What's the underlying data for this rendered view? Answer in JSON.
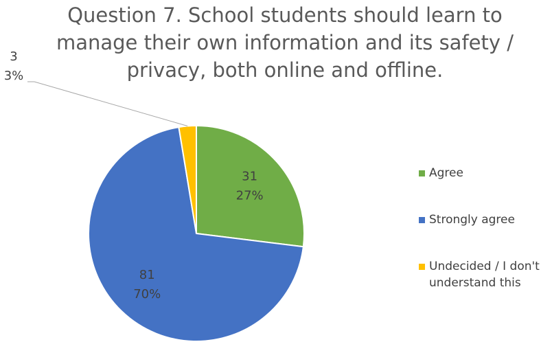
{
  "chart_data": {
    "type": "pie",
    "title": [
      "Question 7. School students should learn to",
      "manage their own information and its safety /",
      "privacy, both online and offline."
    ],
    "categories": [
      "Agree",
      "Strongly agree",
      "Undecided / I don't understand this"
    ],
    "values": [
      31,
      81,
      3
    ],
    "percent_labels": [
      "27%",
      "70%",
      "3%"
    ],
    "colors": [
      "#70ad47",
      "#4472c4",
      "#ffc000"
    ],
    "legend": "right"
  }
}
